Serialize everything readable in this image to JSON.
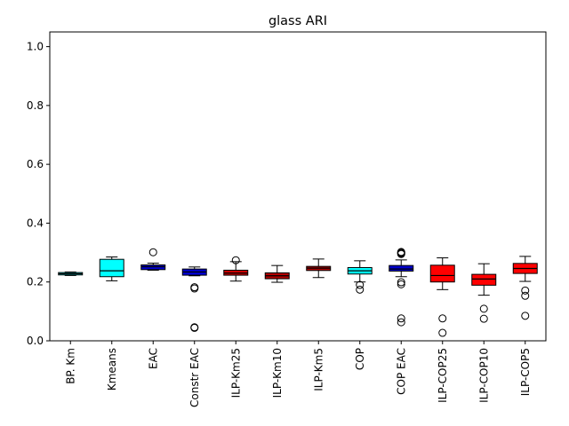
{
  "chart_data": {
    "type": "box",
    "title": "glass ARI",
    "xlabel": "",
    "ylabel": "",
    "ylim": [
      0.0,
      1.05
    ],
    "yticks": [
      0.0,
      0.2,
      0.4,
      0.6,
      0.8,
      1.0
    ],
    "ytick_labels": [
      "0.0",
      "0.2",
      "0.4",
      "0.6",
      "0.8",
      "1.0"
    ],
    "grid": false,
    "legend": "none",
    "categories": [
      "BP. Km",
      "Kmeans",
      "EAC",
      "Constr EAC",
      "ILP-Km25",
      "ILP-Km10",
      "ILP-Km5",
      "COP",
      "COP EAC",
      "ILP-COP25",
      "ILP-COP10",
      "ILP-COP5"
    ],
    "boxes": [
      {
        "color": "#00ffff",
        "whisker_low": 0.222,
        "q1": 0.224,
        "median": 0.228,
        "q3": 0.232,
        "whisker_high": 0.234,
        "outliers": []
      },
      {
        "color": "#00ffff",
        "whisker_low": 0.204,
        "q1": 0.218,
        "median": 0.238,
        "q3": 0.277,
        "whisker_high": 0.285,
        "outliers": []
      },
      {
        "color": "#0000cd",
        "whisker_low": 0.24,
        "q1": 0.242,
        "median": 0.252,
        "q3": 0.258,
        "whisker_high": 0.264,
        "outliers": [
          0.301
        ]
      },
      {
        "color": "#0000cd",
        "whisker_low": 0.221,
        "q1": 0.223,
        "median": 0.234,
        "q3": 0.244,
        "whisker_high": 0.251,
        "outliers": [
          0.182,
          0.178,
          0.046,
          0.044
        ]
      },
      {
        "color": "#cc0000",
        "whisker_low": 0.203,
        "q1": 0.223,
        "median": 0.23,
        "q3": 0.24,
        "whisker_high": 0.269,
        "outliers": [
          0.274
        ]
      },
      {
        "color": "#b30000",
        "whisker_low": 0.199,
        "q1": 0.211,
        "median": 0.221,
        "q3": 0.231,
        "whisker_high": 0.256,
        "outliers": []
      },
      {
        "color": "#b30000",
        "whisker_low": 0.215,
        "q1": 0.239,
        "median": 0.247,
        "q3": 0.253,
        "whisker_high": 0.278,
        "outliers": []
      },
      {
        "color": "#00ffff",
        "whisker_low": 0.2,
        "q1": 0.227,
        "median": 0.238,
        "q3": 0.249,
        "whisker_high": 0.272,
        "outliers": [
          0.19,
          0.174
        ]
      },
      {
        "color": "#0000cd",
        "whisker_low": 0.218,
        "q1": 0.237,
        "median": 0.244,
        "q3": 0.256,
        "whisker_high": 0.275,
        "outliers": [
          0.302,
          0.3,
          0.297,
          0.295,
          0.199,
          0.192,
          0.076,
          0.063
        ]
      },
      {
        "color": "#ff0000",
        "whisker_low": 0.174,
        "q1": 0.2,
        "median": 0.222,
        "q3": 0.257,
        "whisker_high": 0.282,
        "outliers": [
          0.076,
          0.027
        ]
      },
      {
        "color": "#ff0000",
        "whisker_low": 0.155,
        "q1": 0.189,
        "median": 0.21,
        "q3": 0.226,
        "whisker_high": 0.262,
        "outliers": [
          0.109,
          0.075
        ]
      },
      {
        "color": "#ff0000",
        "whisker_low": 0.202,
        "q1": 0.229,
        "median": 0.246,
        "q3": 0.263,
        "whisker_high": 0.287,
        "outliers": [
          0.171,
          0.153,
          0.085
        ]
      }
    ]
  }
}
